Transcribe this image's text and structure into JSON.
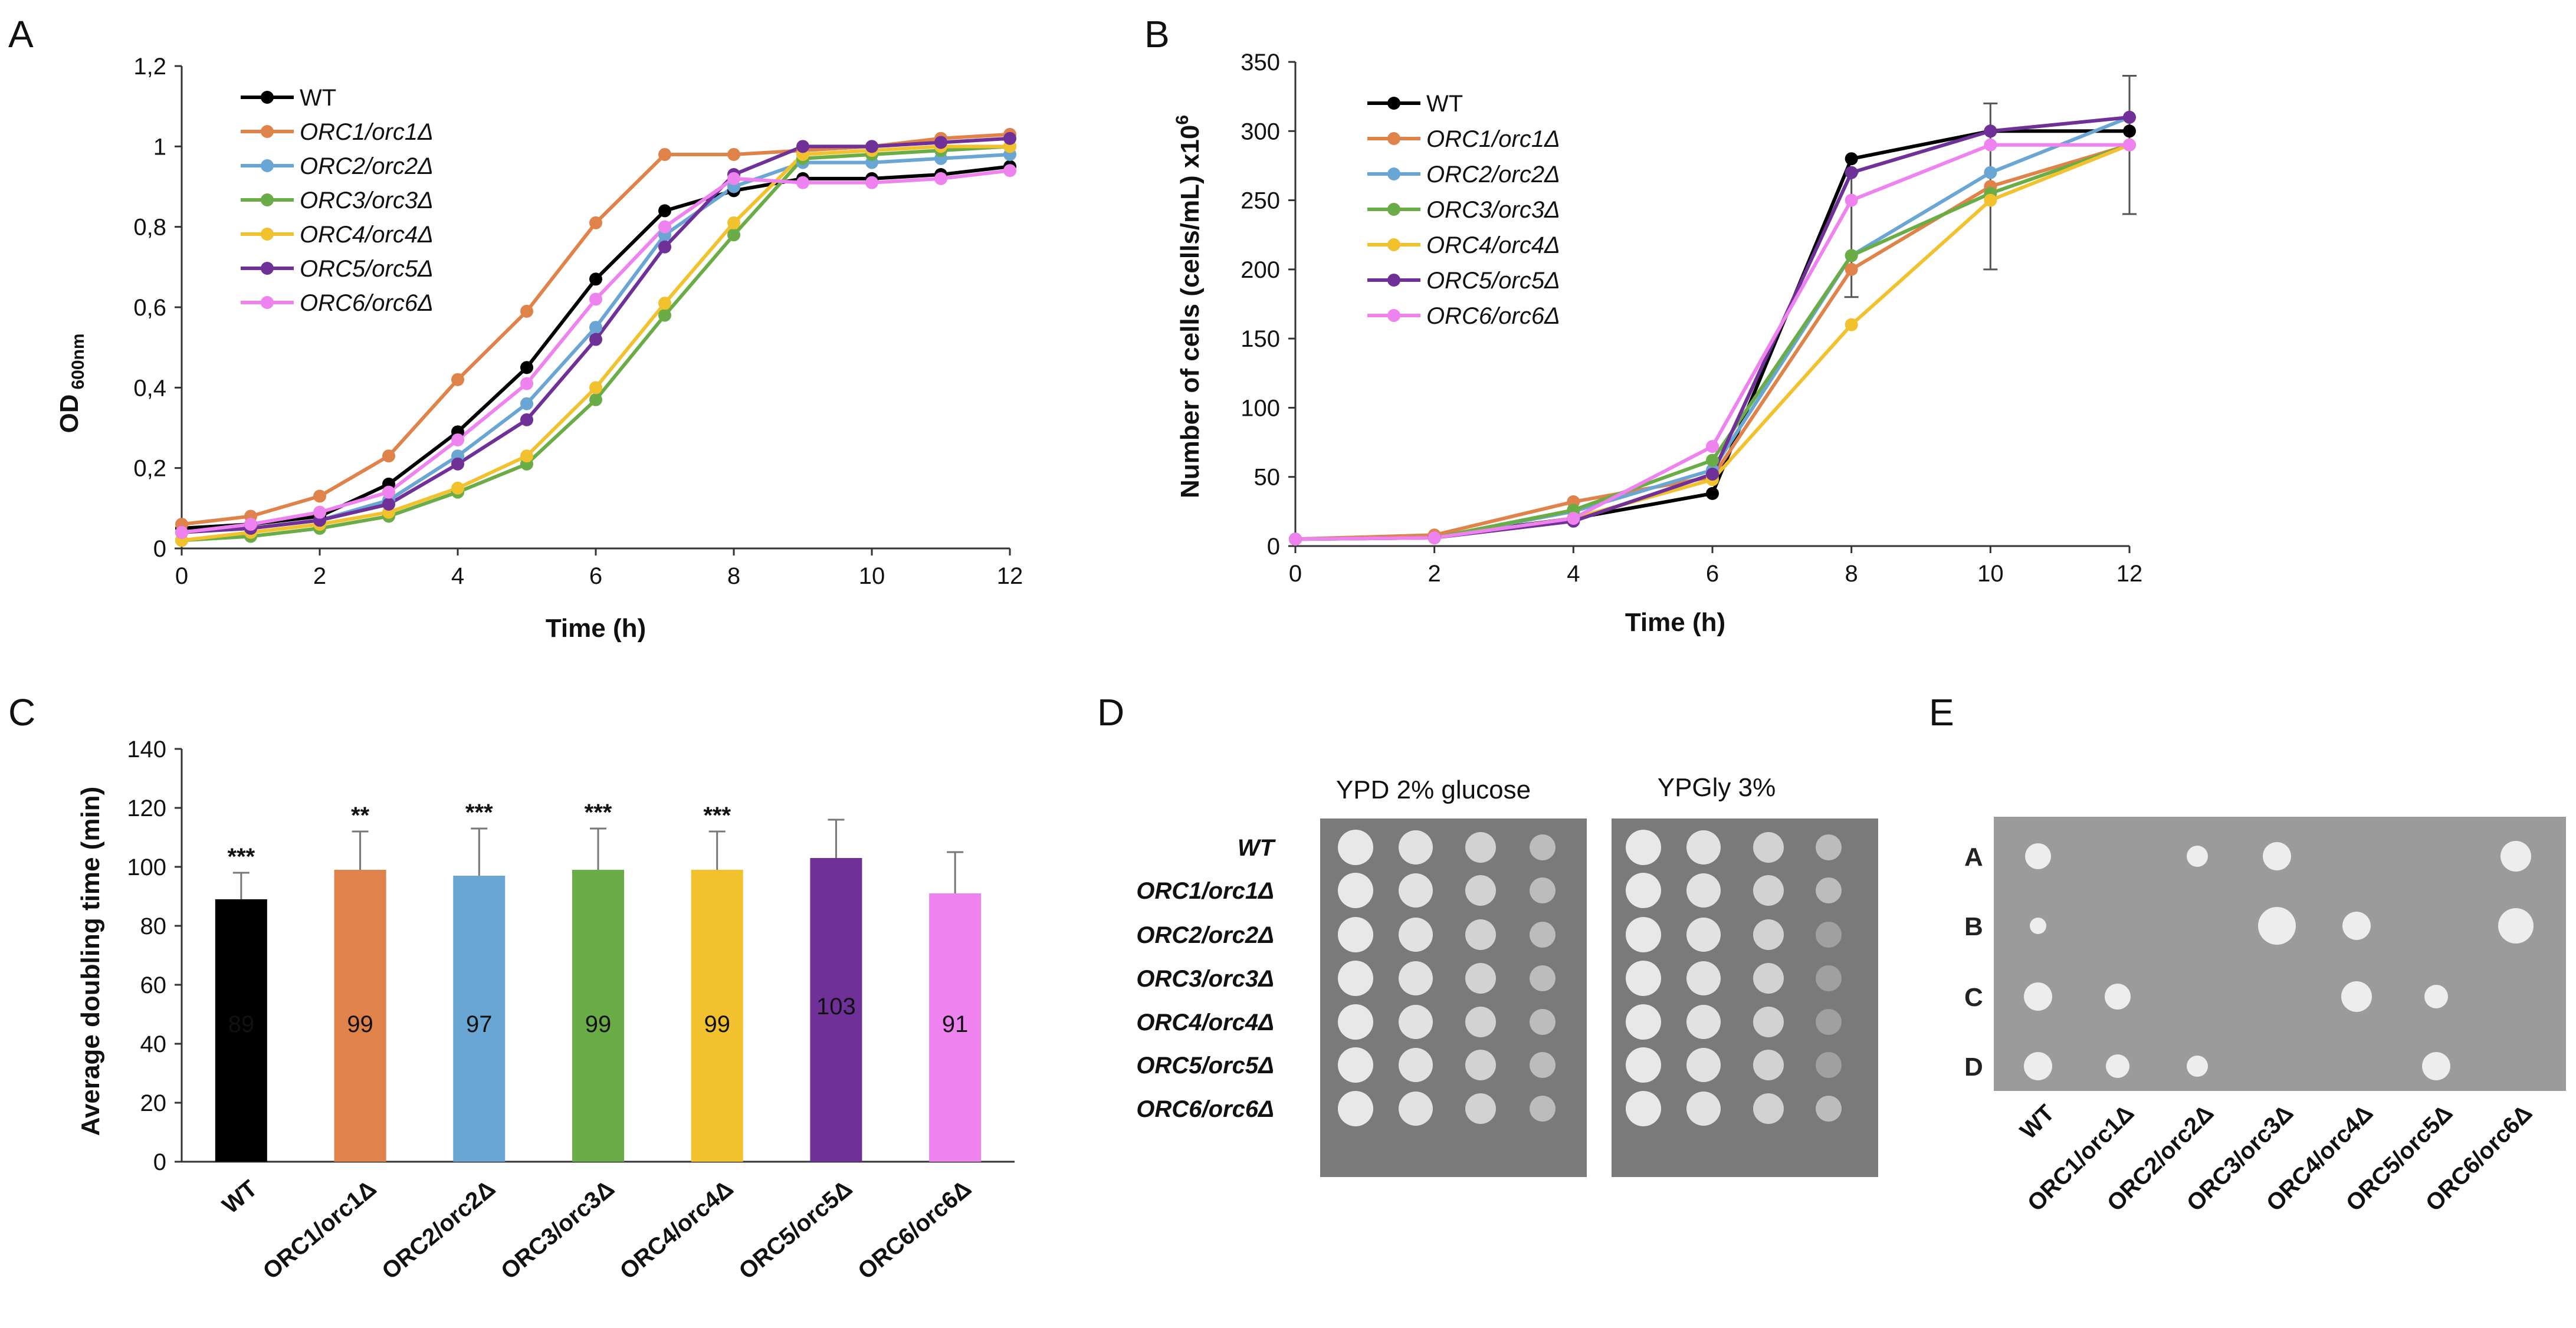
{
  "panels": {
    "A": "A",
    "B": "B",
    "C": "C",
    "D": "D",
    "E": "E"
  },
  "colors": {
    "WT": "#000000",
    "ORC1": "#e0834a",
    "ORC2": "#6aa6d4",
    "ORC3": "#6aac46",
    "ORC4": "#f2c12e",
    "ORC5": "#6f3197",
    "ORC6": "#ee82ee"
  },
  "strains": [
    "WT",
    "ORC1/orc1Δ",
    "ORC2/orc2Δ",
    "ORC3/orc3Δ",
    "ORC4/orc4Δ",
    "ORC5/orc5Δ",
    "ORC6/orc6Δ"
  ],
  "chart_data": [
    {
      "id": "A",
      "type": "line",
      "xlabel": "Time (h)",
      "ylabel_main": "OD",
      "ylabel_sub": "600nm",
      "xlim": [
        0,
        12
      ],
      "ylim": [
        0,
        1.2
      ],
      "xticks": [
        0,
        2,
        4,
        6,
        8,
        10,
        12
      ],
      "yticks": [
        "0",
        "0,2",
        "0,4",
        "0,6",
        "0,8",
        "1",
        "1,2"
      ],
      "x": [
        0,
        1,
        2,
        3,
        4,
        5,
        6,
        7,
        8,
        9,
        10,
        11,
        12
      ],
      "series": [
        {
          "name": "WT",
          "values": [
            0.05,
            0.06,
            0.08,
            0.16,
            0.29,
            0.45,
            0.67,
            0.84,
            0.89,
            0.92,
            0.92,
            0.93,
            0.95
          ]
        },
        {
          "name": "ORC1/orc1Δ",
          "values": [
            0.06,
            0.08,
            0.13,
            0.23,
            0.42,
            0.59,
            0.81,
            0.98,
            0.98,
            0.99,
            1.0,
            1.02,
            1.03
          ]
        },
        {
          "name": "ORC2/orc2Δ",
          "values": [
            0.04,
            0.05,
            0.07,
            0.12,
            0.23,
            0.36,
            0.55,
            0.78,
            0.9,
            0.96,
            0.96,
            0.97,
            0.98
          ]
        },
        {
          "name": "ORC3/orc3Δ",
          "values": [
            0.02,
            0.03,
            0.05,
            0.08,
            0.14,
            0.21,
            0.37,
            0.58,
            0.78,
            0.97,
            0.98,
            0.99,
            1.0
          ]
        },
        {
          "name": "ORC4/orc4Δ",
          "values": [
            0.02,
            0.04,
            0.06,
            0.09,
            0.15,
            0.23,
            0.4,
            0.61,
            0.81,
            0.98,
            0.99,
            1.0,
            1.0
          ]
        },
        {
          "name": "ORC5/orc5Δ",
          "values": [
            0.04,
            0.05,
            0.07,
            0.11,
            0.21,
            0.32,
            0.52,
            0.75,
            0.93,
            1.0,
            1.0,
            1.01,
            1.02
          ]
        },
        {
          "name": "ORC6/orc6Δ",
          "values": [
            0.04,
            0.06,
            0.09,
            0.14,
            0.27,
            0.41,
            0.62,
            0.8,
            0.92,
            0.91,
            0.91,
            0.92,
            0.94
          ]
        }
      ]
    },
    {
      "id": "B",
      "type": "line",
      "xlabel": "Time (h)",
      "ylabel_main": "Number of cells (cells/mL) x10",
      "ylabel_sup": "6",
      "xlim": [
        0,
        12
      ],
      "ylim": [
        0,
        350
      ],
      "xticks": [
        0,
        2,
        4,
        6,
        8,
        10,
        12
      ],
      "yticks": [
        0,
        50,
        100,
        150,
        200,
        250,
        300,
        350
      ],
      "x": [
        0,
        2,
        4,
        6,
        8,
        10,
        12
      ],
      "error_bars": [
        {
          "x": 8,
          "low": 180,
          "high": 270
        },
        {
          "x": 10,
          "low": 200,
          "high": 320
        },
        {
          "x": 12,
          "low": 240,
          "high": 340
        }
      ],
      "series": [
        {
          "name": "WT",
          "values": [
            5,
            7,
            20,
            38,
            280,
            300,
            300
          ]
        },
        {
          "name": "ORC1/orc1Δ",
          "values": [
            5,
            8,
            32,
            50,
            200,
            260,
            290
          ]
        },
        {
          "name": "ORC2/orc2Δ",
          "values": [
            5,
            6,
            25,
            55,
            210,
            270,
            310
          ]
        },
        {
          "name": "ORC3/orc3Δ",
          "values": [
            5,
            6,
            26,
            62,
            210,
            255,
            290
          ]
        },
        {
          "name": "ORC4/orc4Δ",
          "values": [
            5,
            6,
            20,
            48,
            160,
            250,
            290
          ]
        },
        {
          "name": "ORC5/orc5Δ",
          "values": [
            5,
            6,
            18,
            52,
            270,
            300,
            310
          ]
        },
        {
          "name": "ORC6/orc6Δ",
          "values": [
            5,
            6,
            20,
            72,
            250,
            290,
            290
          ]
        }
      ]
    },
    {
      "id": "C",
      "type": "bar",
      "ylabel": "Average doubling time (min)",
      "ylim": [
        0,
        140
      ],
      "yticks": [
        0,
        20,
        40,
        60,
        80,
        100,
        120,
        140
      ],
      "categories": [
        "WT",
        "ORC1/orc1Δ",
        "ORC2/orc2Δ",
        "ORC3/orc3Δ",
        "ORC4/orc4Δ",
        "ORC5/orc5Δ",
        "ORC6/orc6Δ"
      ],
      "values": [
        89,
        99,
        97,
        99,
        99,
        103,
        91
      ],
      "value_labels": [
        "89",
        "99",
        "97",
        "99",
        "99",
        "103",
        "91"
      ],
      "errors": [
        9,
        13,
        16,
        14,
        13,
        13,
        14
      ],
      "significance": [
        "***",
        "**",
        "***",
        "***",
        "***",
        "",
        ""
      ]
    }
  ],
  "panelD": {
    "titles": [
      "YPD 2% glucose",
      "YPGly 3%"
    ],
    "row_labels": [
      "WT",
      "ORC1/orc1Δ",
      "ORC2/orc2Δ",
      "ORC3/orc3Δ",
      "ORC4/orc4Δ",
      "ORC5/orc5Δ",
      "ORC6/orc6Δ"
    ]
  },
  "panelE": {
    "row_labels": [
      "A",
      "B",
      "C",
      "D"
    ],
    "col_labels": [
      "WT",
      "ORC1/orc1Δ",
      "ORC2/orc2Δ",
      "ORC3/orc3Δ",
      "ORC4/orc4Δ",
      "ORC5/orc5Δ",
      "ORC6/orc6Δ"
    ]
  }
}
